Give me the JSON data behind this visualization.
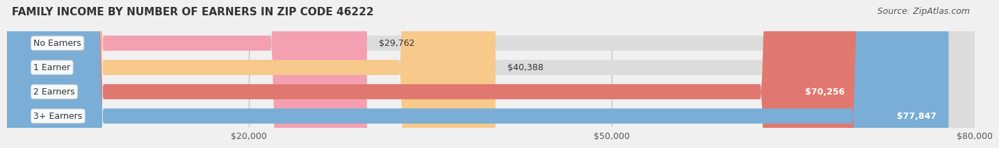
{
  "title": "FAMILY INCOME BY NUMBER OF EARNERS IN ZIP CODE 46222",
  "source": "Source: ZipAtlas.com",
  "categories": [
    "No Earners",
    "1 Earner",
    "2 Earners",
    "3+ Earners"
  ],
  "values": [
    29762,
    40388,
    70256,
    77847
  ],
  "bar_colors": [
    "#f4a0b0",
    "#f7c98a",
    "#e07870",
    "#7aaed6"
  ],
  "bar_edge_colors": [
    "#e8607a",
    "#e0a040",
    "#c05050",
    "#4a80b8"
  ],
  "label_colors": [
    "#333333",
    "#333333",
    "#ffffff",
    "#ffffff"
  ],
  "xmin": 0,
  "xmax": 80000,
  "xticks": [
    20000,
    50000,
    80000
  ],
  "xtick_labels": [
    "$20,000",
    "$50,000",
    "$80,000"
  ],
  "background_color": "#f0f0f0",
  "bar_bg_color": "#e8e8e8",
  "title_fontsize": 11,
  "source_fontsize": 9,
  "label_fontsize": 9,
  "tick_fontsize": 9
}
